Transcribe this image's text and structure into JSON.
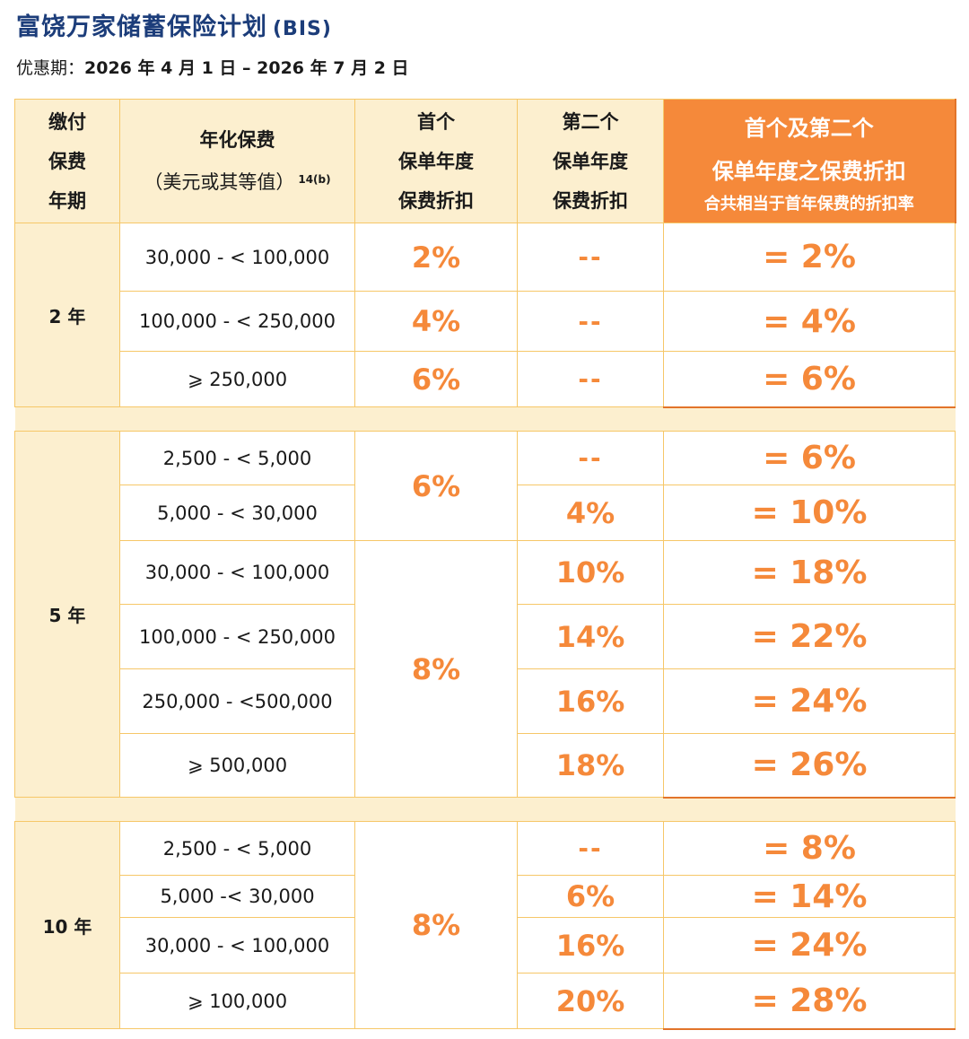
{
  "title": "富饶万家储蓄保险计划",
  "title_suffix": "(BIS)",
  "period_label": "优惠期：",
  "period_value": "2026 年 4 月 1 日 – 2026 年 7 月 2 日",
  "header": {
    "term": [
      "缴付",
      "保费",
      "年期"
    ],
    "premium": [
      "年化保费",
      "（美元或其等值）"
    ],
    "premium_sup": "14(b)",
    "first": [
      "首个",
      "保单年度",
      "保费折扣"
    ],
    "second": [
      "第二个",
      "保单年度",
      "保费折扣"
    ],
    "combined_1": "首个及第二个",
    "combined_2": "保单年度之保费折扣",
    "combined_3": "合共相当于首年保费的折扣率"
  },
  "groups": [
    {
      "term": "2 年",
      "rows": [
        {
          "range": "30,000 - < 100,000",
          "first": "2%",
          "second": "--",
          "total": "= 2%"
        },
        {
          "range": "100,000 - < 250,000",
          "first": "4%",
          "second": "--",
          "total": "= 4%"
        },
        {
          "range": "⩾ 250,000",
          "first": "6%",
          "second": "--",
          "total": "= 6%"
        }
      ]
    },
    {
      "term": "5 年",
      "first_a": "6%",
      "first_b": "8%",
      "rows": [
        {
          "range": "2,500 - < 5,000",
          "second": "--",
          "total": "= 6%"
        },
        {
          "range": "5,000 - < 30,000",
          "second": "4%",
          "total": "= 10%"
        },
        {
          "range": "30,000 - < 100,000",
          "second": "10%",
          "total": "= 18%"
        },
        {
          "range": "100,000 - < 250,000",
          "second": "14%",
          "total": "= 22%"
        },
        {
          "range": "250,000 - <500,000",
          "second": "16%",
          "total": "= 24%"
        },
        {
          "range": "⩾ 500,000",
          "second": "18%",
          "total": "= 26%"
        }
      ]
    },
    {
      "term": "10 年",
      "first": "8%",
      "rows": [
        {
          "range": "2,500 - < 5,000",
          "second": "--",
          "total": "= 8%"
        },
        {
          "range": "5,000 -< 30,000",
          "second": "6%",
          "total": "= 14%"
        },
        {
          "range": "30,000 - < 100,000",
          "second": "16%",
          "total": "= 24%"
        },
        {
          "range": "⩾ 100,000",
          "second": "20%",
          "total": "= 28%"
        }
      ]
    }
  ]
}
